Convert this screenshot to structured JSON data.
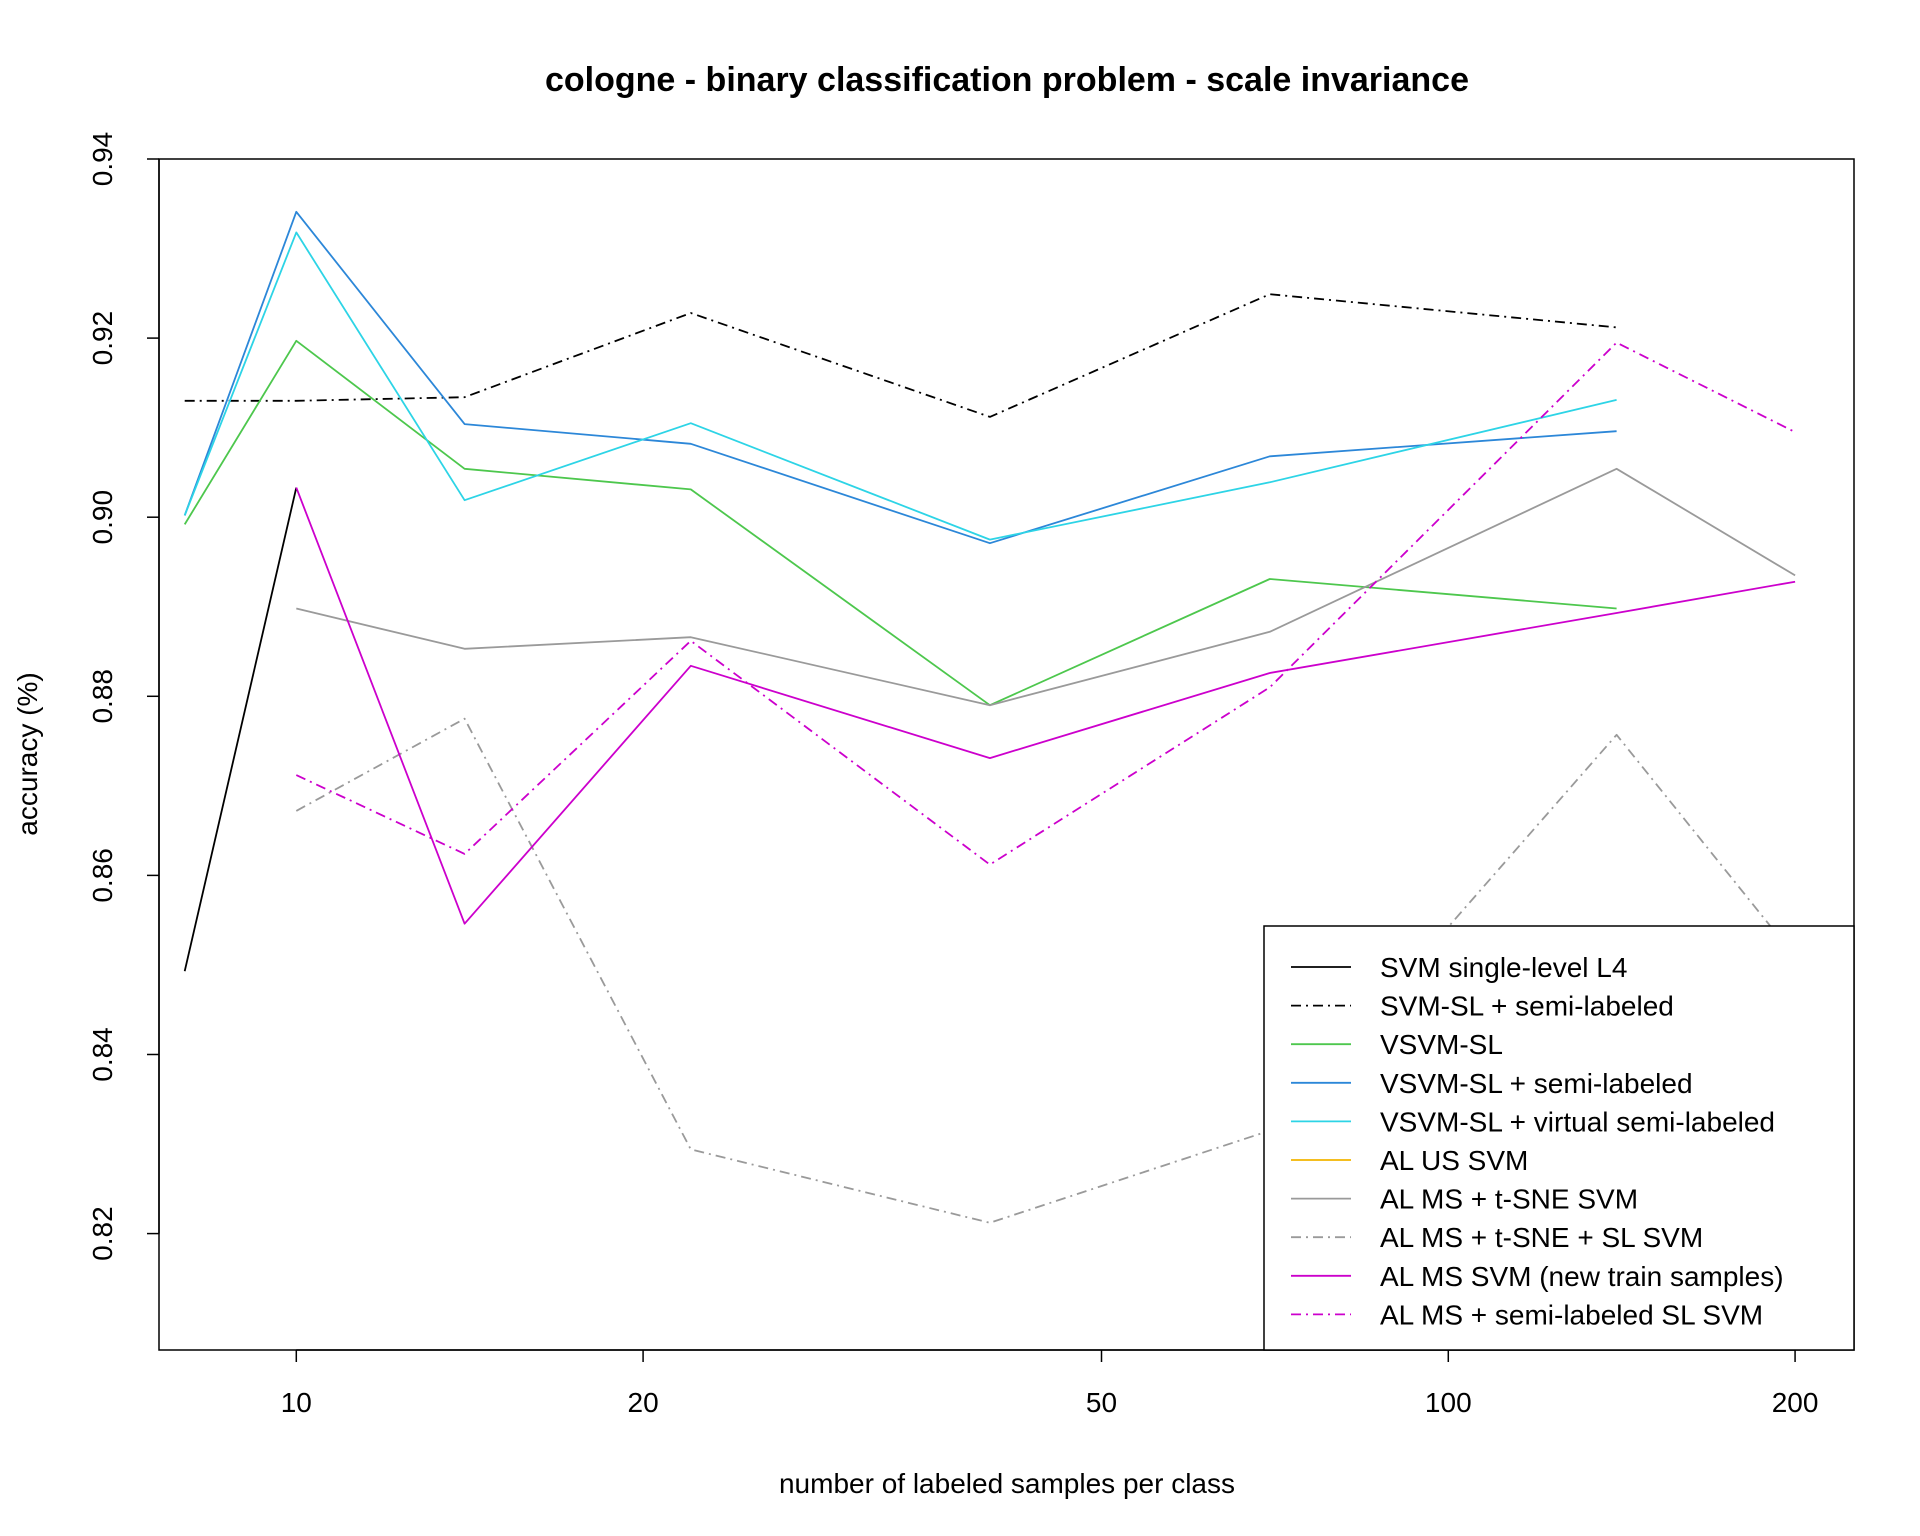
{
  "chart_data": {
    "type": "line",
    "title": "cologne - binary classification problem - scale invariance",
    "xlabel": "number of labeled samples per class",
    "ylabel": "accuracy (%)",
    "xscale": "log",
    "xlim": [
      7.6,
      225
    ],
    "ylim": [
      0.807,
      0.94
    ],
    "x": [
      8,
      10,
      14,
      22,
      40,
      70,
      140,
      200
    ],
    "x_ticks": [
      10,
      20,
      50,
      100,
      200
    ],
    "y_ticks": [
      0.82,
      0.84,
      0.86,
      0.88,
      0.9,
      0.92,
      0.94
    ],
    "x_tick_labels": [
      "10",
      "20",
      "50",
      "100",
      "200"
    ],
    "y_tick_labels": [
      "0.82",
      "0.84",
      "0.86",
      "0.88",
      "0.90",
      "0.92",
      "0.94"
    ],
    "grid": false,
    "legend_position": "bottom-right",
    "series": [
      {
        "name": "SVM single-level L4",
        "color": "#000000",
        "dash": "solid",
        "values": [
          0.8493,
          0.9033,
          null,
          null,
          null,
          null,
          null,
          null
        ]
      },
      {
        "name": "SVM-SL + semi-labeled",
        "color": "#000000",
        "dash": "dashdot",
        "values": [
          0.913,
          0.913,
          0.9134,
          0.9228,
          0.9112,
          0.9249,
          0.9212,
          null
        ]
      },
      {
        "name": "VSVM-SL",
        "color": "#4dc74d",
        "dash": "solid",
        "values": [
          0.8992,
          0.9197,
          0.9054,
          0.9031,
          0.879,
          0.8931,
          0.8898,
          null
        ]
      },
      {
        "name": "VSVM-SL + semi-labeled",
        "color": "#2c87d8",
        "dash": "solid",
        "values": [
          0.9002,
          0.9341,
          0.9104,
          0.9082,
          0.8971,
          0.9068,
          0.9096,
          null
        ]
      },
      {
        "name": "VSVM-SL + virtual semi-labeled",
        "color": "#2dd4e6",
        "dash": "solid",
        "values": [
          0.9002,
          0.9318,
          0.9019,
          0.9105,
          0.8975,
          0.9039,
          0.9131,
          null
        ]
      },
      {
        "name": "AL US SVM",
        "color": "#f2b400",
        "dash": "solid",
        "values": [
          null,
          null,
          null,
          null,
          null,
          null,
          null,
          null
        ]
      },
      {
        "name": "AL MS + t-SNE SVM",
        "color": "#9a9a9a",
        "dash": "solid",
        "values": [
          null,
          0.8898,
          0.8853,
          0.8866,
          0.879,
          0.8872,
          0.9054,
          0.8935
        ]
      },
      {
        "name": "AL MS + t-SNE + SL SVM",
        "color": "#9a9a9a",
        "dash": "dashdot",
        "values": [
          null,
          0.8672,
          0.8775,
          0.8294,
          0.8212,
          0.8315,
          0.8757,
          0.8509
        ]
      },
      {
        "name": "AL MS SVM (new train samples)",
        "color": "#cc00cc",
        "dash": "solid",
        "values": [
          null,
          0.9033,
          0.8546,
          0.8834,
          0.8731,
          0.8826,
          0.8893,
          0.8928
        ]
      },
      {
        "name": "AL MS + semi-labeled SL SVM",
        "color": "#cc00cc",
        "dash": "dashdot",
        "values": [
          null,
          0.8712,
          0.8624,
          0.8862,
          0.8612,
          0.881,
          0.9195,
          0.9095
        ]
      }
    ]
  }
}
